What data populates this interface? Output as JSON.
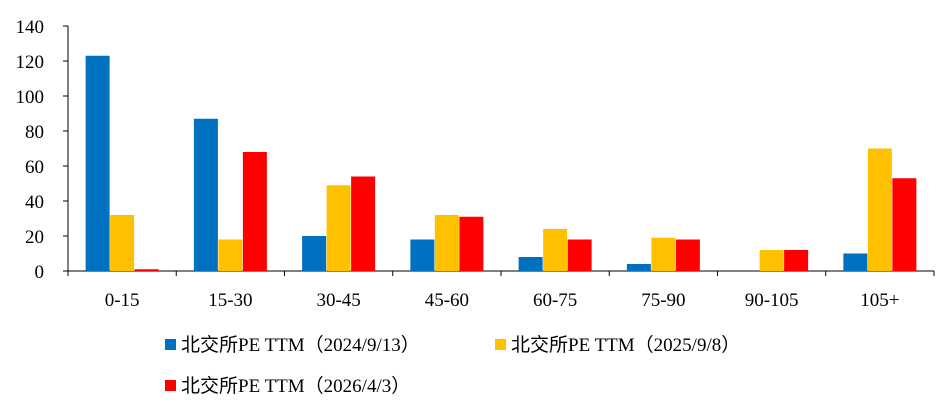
{
  "chart_data": {
    "type": "bar",
    "title": "",
    "xlabel": "",
    "ylabel": "",
    "categories": [
      "0-15",
      "15-30",
      "30-45",
      "45-60",
      "60-75",
      "75-90",
      "90-105",
      "105+"
    ],
    "ylim": [
      0,
      140
    ],
    "yticks": [
      0,
      20,
      40,
      60,
      80,
      100,
      120,
      140
    ],
    "grid": false,
    "legend_position": "bottom",
    "series": [
      {
        "name": "北交所PE TTM（2024/9/13）",
        "color": "#0070C0",
        "values": [
          123,
          87,
          20,
          18,
          8,
          4,
          0,
          10
        ]
      },
      {
        "name": "北交所PE TTM（2025/9/8）",
        "color": "#FFC000",
        "values": [
          32,
          18,
          49,
          32,
          24,
          19,
          12,
          70
        ]
      },
      {
        "name": "北交所PE TTM（2026/4/3）",
        "color": "#FF0000",
        "values": [
          1,
          68,
          54,
          31,
          18,
          18,
          12,
          53
        ]
      }
    ]
  }
}
